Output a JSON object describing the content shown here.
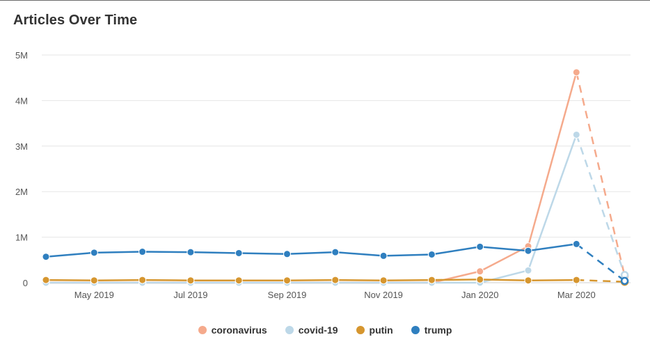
{
  "title": "Articles Over Time",
  "chart_data": {
    "type": "line",
    "title": "Articles Over Time",
    "xlabel": "",
    "ylabel": "",
    "x": [
      "2019-04",
      "2019-05",
      "2019-06",
      "2019-07",
      "2019-08",
      "2019-09",
      "2019-10",
      "2019-11",
      "2019-12",
      "2020-01",
      "2020-02",
      "2020-03",
      "2020-04"
    ],
    "x_tick_labels": [
      {
        "x": "2019-05",
        "label": "May 2019"
      },
      {
        "x": "2019-07",
        "label": "Jul 2019"
      },
      {
        "x": "2019-09",
        "label": "Sep 2019"
      },
      {
        "x": "2019-11",
        "label": "Nov 2019"
      },
      {
        "x": "2020-01",
        "label": "Jan 2020"
      },
      {
        "x": "2020-03",
        "label": "Mar 2020"
      }
    ],
    "y_ticks": [
      {
        "value": 0,
        "label": "0"
      },
      {
        "value": 1000000,
        "label": "1M"
      },
      {
        "value": 2000000,
        "label": "2M"
      },
      {
        "value": 3000000,
        "label": "3M"
      },
      {
        "value": 4000000,
        "label": "4M"
      },
      {
        "value": 5000000,
        "label": "5M"
      }
    ],
    "ylim": [
      0,
      5000000
    ],
    "grid": true,
    "legend_position": "bottom-center",
    "dashed_last_segment": true,
    "series": [
      {
        "name": "coronavirus",
        "color": "#f5aa8c",
        "values": [
          0,
          0,
          0,
          0,
          0,
          0,
          0,
          0,
          0,
          250000,
          800000,
          4620000,
          150000
        ]
      },
      {
        "name": "covid-19",
        "color": "#bdd8e8",
        "values": [
          0,
          0,
          0,
          0,
          0,
          0,
          0,
          0,
          0,
          0,
          270000,
          3250000,
          170000
        ]
      },
      {
        "name": "putin",
        "color": "#d6962f",
        "values": [
          60000,
          50000,
          60000,
          50000,
          50000,
          50000,
          60000,
          50000,
          60000,
          70000,
          50000,
          60000,
          20000
        ]
      },
      {
        "name": "trump",
        "color": "#2f7fbf",
        "values": [
          570000,
          660000,
          680000,
          670000,
          650000,
          630000,
          670000,
          590000,
          620000,
          790000,
          700000,
          850000,
          40000
        ]
      }
    ]
  }
}
